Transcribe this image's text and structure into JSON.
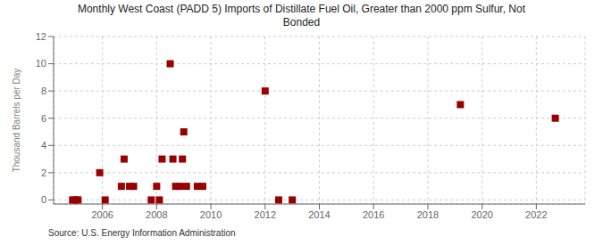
{
  "chart_data": {
    "type": "scatter",
    "title": "Monthly West Coast (PADD 5) Imports of Distillate Fuel Oil, Greater than 2000 ppm Sulfur, Not\nBonded",
    "ylabel": "Thousand Barrels per Day",
    "annotations": [
      "Source: U.S. Energy Information Administration"
    ],
    "x": [
      2004.9,
      2005.0,
      2005.1,
      2005.9,
      2006.1,
      2006.7,
      2006.8,
      2007.0,
      2007.15,
      2007.8,
      2008.0,
      2008.1,
      2008.2,
      2008.5,
      2008.6,
      2008.7,
      2008.85,
      2008.95,
      2009.0,
      2009.1,
      2009.5,
      2009.7,
      2012.0,
      2012.5,
      2013.0,
      2019.2,
      2022.7
    ],
    "values": [
      0,
      0,
      0,
      2,
      0,
      1,
      3,
      1,
      1,
      0,
      1,
      0,
      3,
      10,
      3,
      1,
      1,
      3,
      5,
      1,
      1,
      1,
      8,
      0,
      0,
      7,
      6
    ],
    "color": "#990000",
    "marker": "square",
    "xlim": [
      2004.2,
      2023.8
    ],
    "ylim": [
      -0.3,
      12
    ],
    "xticks": [
      2006,
      2008,
      2010,
      2012,
      2014,
      2016,
      2018,
      2020,
      2022
    ],
    "yticks": [
      0,
      2,
      4,
      6,
      8,
      10,
      12
    ],
    "grid": true
  }
}
